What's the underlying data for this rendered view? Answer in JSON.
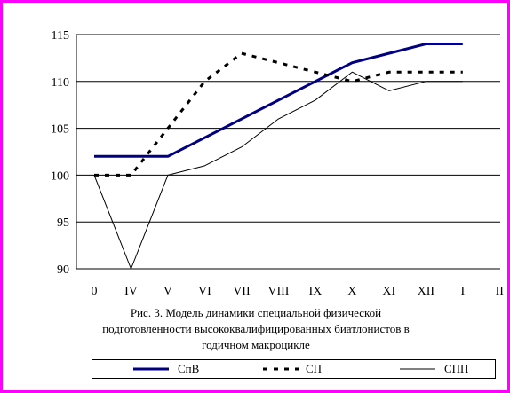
{
  "chart_data": {
    "type": "line",
    "categories": [
      "0",
      "IV",
      "V",
      "VI",
      "VII",
      "VIII",
      "IX",
      "X",
      "XI",
      "XII",
      "I",
      "II"
    ],
    "ylim": [
      90,
      115
    ],
    "yticks": [
      90,
      95,
      100,
      105,
      110,
      115
    ],
    "grid": "horizontal",
    "series": [
      {
        "name": "СпВ",
        "color": "#000080",
        "style": "solid-thick",
        "values": [
          102,
          102,
          102,
          104,
          106,
          108,
          110,
          112,
          113,
          114,
          114,
          null
        ]
      },
      {
        "name": "СП",
        "color": "#000000",
        "style": "dashed",
        "values": [
          100,
          100,
          105,
          110,
          113,
          112,
          111,
          110,
          111,
          111,
          111,
          null
        ]
      },
      {
        "name": "СПП",
        "color": "#000000",
        "style": "solid-thin",
        "values": [
          100,
          90,
          100,
          101,
          103,
          106,
          108,
          111,
          109,
          110,
          110,
          null
        ]
      }
    ],
    "legend_position": "bottom",
    "caption": "Рис. 3. Модель динамики специальной физической подготовленности высококвалифицированных биатлонистов в годичном макроцикле"
  }
}
